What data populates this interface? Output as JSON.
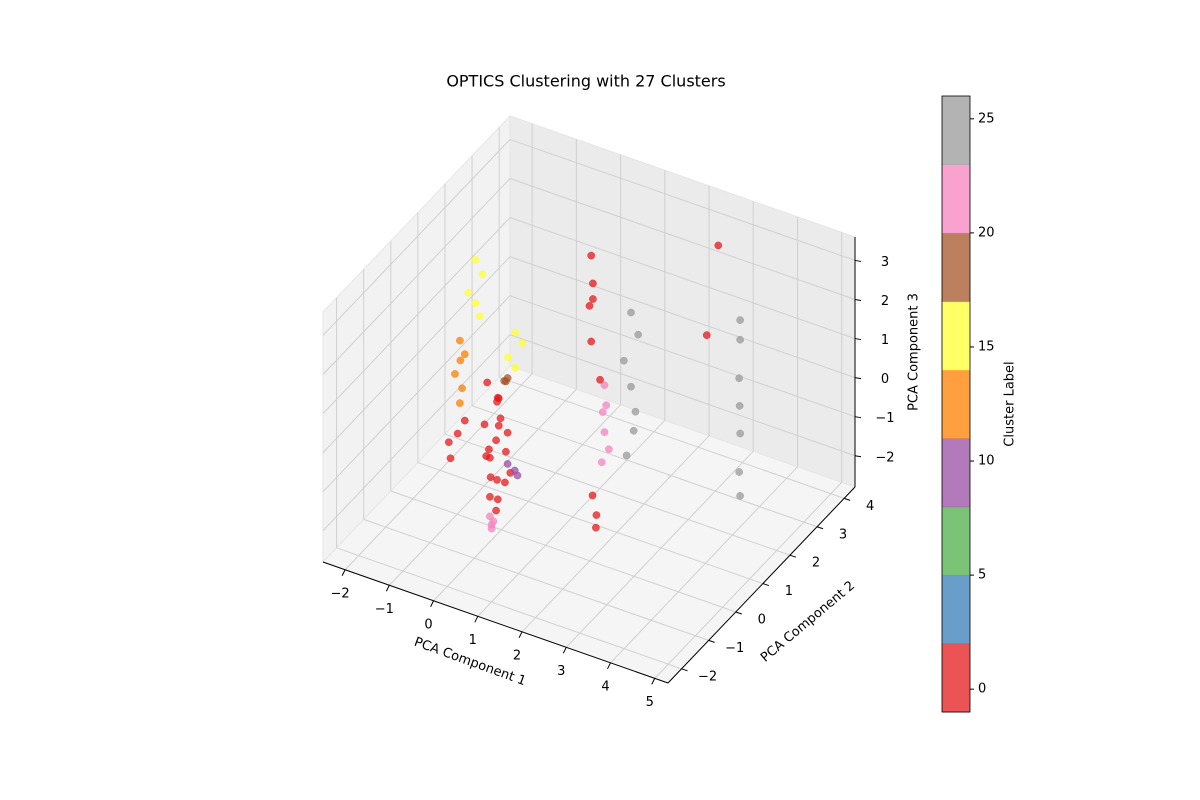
{
  "chart_data": {
    "type": "scatter3d",
    "title": "OPTICS Clustering with 27 Clusters",
    "xlabel": "PCA Component 1",
    "ylabel": "PCA Component 2",
    "zlabel": "PCA Component 3",
    "xlim": [
      -2.5,
      5.3
    ],
    "ylim": [
      -2.5,
      4.4
    ],
    "zlim": [
      -2.8,
      3.6
    ],
    "xticks": [
      {
        "value": -2,
        "label": "−2"
      },
      {
        "value": -1,
        "label": "−1"
      },
      0,
      1,
      2,
      3,
      4,
      5
    ],
    "yticks": [
      {
        "value": -2,
        "label": "−2"
      },
      {
        "value": -1,
        "label": "−1"
      },
      0,
      1,
      2,
      3,
      4
    ],
    "zticks": [
      {
        "value": -2,
        "label": "−2"
      },
      {
        "value": -1,
        "label": "−1"
      },
      0,
      1,
      2,
      3
    ],
    "grid": true,
    "points": {
      "x": [
        0.8,
        0.6,
        0.9,
        0.7,
        1.0,
        0.8,
        0.6,
        0.9,
        0.7,
        0.8,
        1.0,
        0.6,
        0.9,
        0.7,
        0.8,
        0.9,
        0.6,
        1.0,
        0.7,
        0.8,
        0.7,
        0.6,
        0.8,
        0.7,
        1.1,
        1.0,
        1.1,
        0.9,
        1.0,
        0.8,
        -1.2,
        -1.1,
        -1.3,
        -1.2,
        -1.1,
        -0.3,
        -0.2,
        -0.4,
        -0.3,
        -1.55,
        -1.5,
        -1.6,
        -1.5,
        -1.55,
        -1.6,
        -1.6,
        -1.7,
        -1.5,
        -1.8,
        0.8,
        0.9,
        0.7,
        0.8,
        0.9,
        0.8,
        1.4,
        1.5,
        1.3,
        1.4,
        1.5,
        1.4,
        1.3,
        0.5,
        0.6,
        0.4,
        0.5,
        0.7,
        0.6,
        2.15,
        2.0,
        2.2,
        3.56,
        3.5,
        3.6,
        3.55,
        3.5,
        3.6,
        3.56,
        2.76,
        2.5
      ],
      "y": [
        -1.5,
        -1.4,
        -1.6,
        -1.3,
        -1.5,
        -1.7,
        -1.4,
        -1.3,
        -1.6,
        -1.5,
        -1.4,
        -1.6,
        -1.5,
        -1.3,
        -1.4,
        -1.6,
        -1.5,
        -1.3,
        -1.7,
        -1.4,
        -1.5,
        -1.4,
        -1.6,
        -1.5,
        -1.3,
        -1.4,
        -1.2,
        -1.3,
        -1.4,
        -1.2,
        1.0,
        1.1,
        0.9,
        1.0,
        1.0,
        1.0,
        1.1,
        0.9,
        1.0,
        1.0,
        1.1,
        0.9,
        1.0,
        1.0,
        1.1,
        1.0,
        0.9,
        1.1,
        1.0,
        2.5,
        2.4,
        2.6,
        2.5,
        2.5,
        2.4,
        2.5,
        2.6,
        2.4,
        2.5,
        2.5,
        2.6,
        2.5,
        2.5,
        2.4,
        2.6,
        2.5,
        2.5,
        2.4,
        0.0,
        0.1,
        -0.1,
        3.0,
        3.1,
        2.9,
        3.0,
        3.1,
        2.9,
        3.0,
        3.5,
        3.5
      ],
      "z": [
        -0.9,
        -0.7,
        -0.5,
        -0.3,
        -0.1,
        0.1,
        0.3,
        0.5,
        0.7,
        0.9,
        1.1,
        1.3,
        1.5,
        1.7,
        1.9,
        2.1,
        2.3,
        0.0,
        0.6,
        1.2,
        -1.4,
        -1.2,
        -1.1,
        -1.3,
        0.1,
        0.3,
        -0.1,
        2.3,
        2.5,
        2.2,
        2.9,
        2.5,
        2.1,
        1.8,
        1.5,
        1.4,
        1.1,
        0.8,
        0.5,
        0.7,
        0.3,
        -0.1,
        -0.5,
        -0.9,
        0.1,
        -1.7,
        -2.3,
        -1.4,
        -2.0,
        -0.6,
        -1.0,
        -1.4,
        -1.8,
        -2.2,
        -2.5,
        1.5,
        0.9,
        0.3,
        -0.4,
        -1.0,
        -1.6,
        -2.2,
        2.6,
        2.0,
        1.2,
        0.4,
        -0.5,
        1.6,
        -1.57,
        -1.2,
        -1.8,
        1.8,
        1.2,
        0.4,
        -0.4,
        -1.2,
        -2.0,
        -2.7,
        3.03,
        0.63
      ],
      "c": [
        0,
        0,
        0,
        0,
        0,
        0,
        0,
        0,
        0,
        0,
        0,
        0,
        0,
        0,
        0,
        0,
        0,
        0,
        0,
        0,
        21,
        21,
        21,
        21,
        10,
        10,
        10,
        19,
        19,
        19,
        16,
        16,
        16,
        16,
        16,
        16,
        16,
        16,
        16,
        13,
        13,
        13,
        13,
        13,
        13,
        0,
        0,
        0,
        0,
        21,
        21,
        21,
        21,
        21,
        21,
        25,
        25,
        25,
        25,
        25,
        25,
        25,
        0,
        0,
        0,
        0,
        0,
        0,
        0,
        0,
        0,
        25,
        25,
        25,
        25,
        25,
        25,
        25,
        0,
        0
      ]
    },
    "colorbar": {
      "label": "Cluster Label",
      "clim": [
        -1,
        26
      ],
      "ticks": [
        0,
        5,
        10,
        15,
        20,
        25
      ],
      "colors": [
        "#e41a1c",
        "#377eb8",
        "#4daf4a",
        "#984ea3",
        "#ff7f00",
        "#ffff33",
        "#a65628",
        "#f781bf",
        "#999999"
      ]
    }
  }
}
